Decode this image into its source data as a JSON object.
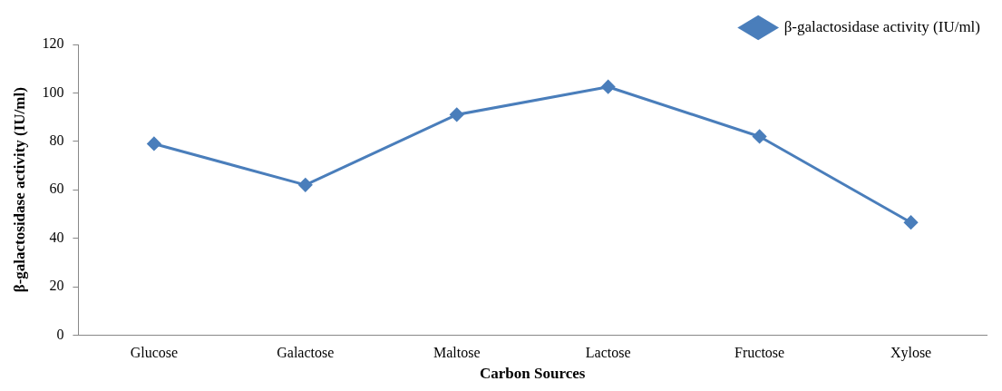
{
  "chart_data": {
    "type": "line",
    "xlabel": "Carbon Sources",
    "ylabel": "β-galactosidase activity (IU/ml)",
    "categories": [
      "Glucose",
      "Galactose",
      "Maltose",
      "Lactose",
      "Fructose",
      "Xylose"
    ],
    "series": [
      {
        "name": "β-galactosidase activity (IU/ml)",
        "color": "#4a7ebb",
        "values": [
          79,
          62,
          91,
          102.5,
          82,
          46.5
        ]
      }
    ],
    "ylim": [
      0,
      120
    ],
    "yticks": [
      0,
      20,
      40,
      60,
      80,
      100,
      120
    ],
    "grid": false,
    "legend": "top right",
    "marker": "diamond",
    "line_style": "solid"
  }
}
